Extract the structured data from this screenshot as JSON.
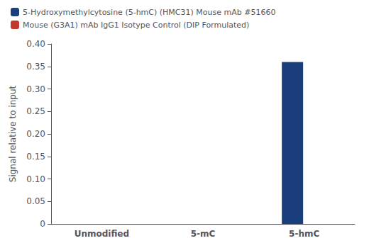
{
  "chart_data": {
    "type": "bar",
    "categories": [
      "Unmodified",
      "5-mC",
      "5-hmC"
    ],
    "series": [
      {
        "name": "5-Hydroxymethylcytosine (5-hmC) (HMC31) Mouse mAb #51660",
        "color": "#1a3d7c",
        "values": [
          0.0,
          0.0,
          0.36
        ]
      },
      {
        "name": "Mouse (G3A1) mAb IgG1 Isotype Control (DIP Formulated)",
        "color": "#c0392b",
        "values": [
          0.0,
          0.0,
          0.0
        ]
      }
    ],
    "ylabel": "Signal relative to input",
    "ylim": [
      0,
      0.4
    ],
    "yticks": [
      0,
      0.05,
      {
        "value": 0.1,
        "label": "0.10"
      },
      0.15,
      {
        "value": 0.2,
        "label": "0.20"
      },
      0.25,
      {
        "value": 0.3,
        "label": "0.30"
      },
      0.35,
      {
        "value": 0.4,
        "label": "0.40"
      }
    ],
    "grid": false,
    "legend": "upper left"
  }
}
